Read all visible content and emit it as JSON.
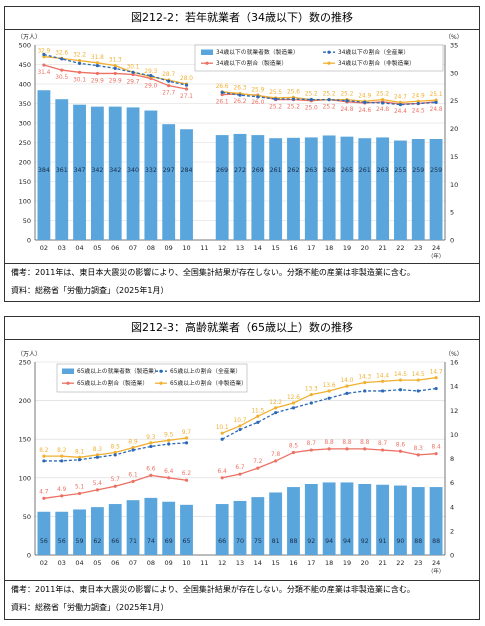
{
  "colors": {
    "bar": "#5aa6dc",
    "total": "#2b68b5",
    "manufacturing": "#ec7063",
    "non_manufacturing": "#f0b030"
  },
  "panels": [
    {
      "title": "図212-2：若年就業者（34歳以下）数の推移",
      "notes": [
        "備考：2011年は、東日本大震災の影響により、全国集計結果が存在しない。分類不能の産業は非製造業に含む。",
        "資料：総務省「労働力調査」（2025年1月）"
      ]
    },
    {
      "title": "図212-3：高齢就業者（65歳以上）数の推移",
      "notes": [
        "備考：2011年は、東日本大震災の影響により、全国集計結果が存在しない。分類不能の産業は非製造業に含む。",
        "資料：総務省「労働力調査」（2025年1月）"
      ]
    }
  ],
  "chart_data": [
    {
      "type": "bar",
      "categories": [
        "02",
        "03",
        "04",
        "05",
        "06",
        "07",
        "08",
        "09",
        "10",
        "11",
        "12",
        "13",
        "14",
        "15",
        "16",
        "17",
        "18",
        "19",
        "20",
        "21",
        "22",
        "23",
        "24"
      ],
      "left_unit": "（万人）",
      "right_unit": "（%）",
      "x_unit": "（年）",
      "ylim": [
        0,
        500
      ],
      "y2lim": [
        0,
        35
      ],
      "left_ticks": [
        "0",
        "50",
        "100",
        "150",
        "200",
        "250",
        "300",
        "350",
        "400",
        "450",
        "500"
      ],
      "right_ticks": [
        "0",
        "5",
        "10",
        "15",
        "20",
        "25",
        "30",
        "35"
      ],
      "legend": [
        "34歳以下の就業者数（製造業）",
        "34歳以下の割合（全産業）",
        "34歳以下の割合（製造業）",
        "34歳以下の割合（非製造業）"
      ],
      "bars": [
        384,
        361,
        347,
        342,
        342,
        340,
        332,
        297,
        284,
        null,
        269,
        272,
        269,
        261,
        262,
        263,
        268,
        265,
        261,
        263,
        255,
        259,
        259
      ],
      "total_ratio": [
        33.3,
        32.5,
        31.7,
        31.3,
        30.8,
        30.1,
        29.5,
        28.5,
        27.8,
        null,
        26.5,
        26.0,
        25.7,
        25.3,
        25.3,
        25.2,
        25.2,
        25.0,
        24.7,
        24.6,
        24.3,
        24.5,
        24.7
      ],
      "manufacturing_ratio": [
        31.4,
        30.5,
        30.1,
        29.9,
        29.9,
        29.7,
        29.0,
        27.7,
        27.1,
        null,
        26.1,
        26.2,
        26.0,
        25.2,
        25.2,
        25.0,
        25.2,
        24.8,
        24.6,
        24.8,
        24.4,
        24.5,
        24.8
      ],
      "non_manufacturing_ratio": [
        32.9,
        32.6,
        32.2,
        31.8,
        31.3,
        30.1,
        29.3,
        28.7,
        28.0,
        null,
        26.6,
        26.3,
        25.9,
        25.5,
        25.6,
        25.2,
        25.2,
        25.2,
        24.9,
        25.2,
        24.7,
        24.9,
        25.1
      ]
    },
    {
      "type": "bar",
      "categories": [
        "02",
        "03",
        "04",
        "05",
        "06",
        "07",
        "08",
        "09",
        "10",
        "11",
        "12",
        "13",
        "14",
        "15",
        "16",
        "17",
        "18",
        "19",
        "20",
        "21",
        "22",
        "23",
        "24"
      ],
      "left_unit": "（万人）",
      "right_unit": "（%）",
      "x_unit": "（年）",
      "ylim": [
        0,
        250
      ],
      "y2lim": [
        0,
        16
      ],
      "left_ticks": [
        "0",
        "50",
        "100",
        "150",
        "200",
        "250"
      ],
      "right_ticks": [
        "0",
        "2",
        "4",
        "6",
        "8",
        "10",
        "12",
        "14",
        "16"
      ],
      "legend": [
        "65歳以上の就業者数（製造業）",
        "65歳以上の割合（全産業）",
        "65歳以上の割合（製造業）",
        "65歳以上の割合（非製造業）"
      ],
      "bars": [
        56,
        56,
        59,
        62,
        66,
        71,
        74,
        69,
        65,
        null,
        66,
        70,
        75,
        81,
        88,
        92,
        94,
        94,
        92,
        91,
        90,
        88,
        88
      ],
      "total_ratio": [
        7.8,
        7.8,
        7.9,
        8.1,
        8.3,
        8.7,
        9.0,
        9.2,
        9.3,
        null,
        9.6,
        10.4,
        11.0,
        11.8,
        12.2,
        12.6,
        13.0,
        13.4,
        13.6,
        13.6,
        13.7,
        13.6,
        13.8
      ],
      "manufacturing_ratio": [
        4.7,
        4.9,
        5.1,
        5.4,
        5.7,
        6.1,
        6.6,
        6.4,
        6.2,
        null,
        6.4,
        6.7,
        7.2,
        7.8,
        8.5,
        8.7,
        8.8,
        8.8,
        8.8,
        8.7,
        8.6,
        8.3,
        8.4
      ],
      "non_manufacturing_ratio": [
        8.2,
        8.2,
        8.1,
        8.3,
        8.5,
        8.9,
        9.3,
        9.5,
        9.7,
        null,
        10.1,
        10.7,
        11.5,
        12.2,
        12.6,
        13.3,
        13.6,
        14.0,
        14.3,
        14.4,
        14.5,
        14.5,
        14.7
      ],
      "labels": {
        "total": [],
        "manufacturing": [
          "4.7",
          "4.9",
          "5.1",
          "5.4",
          "5.7",
          "6.1",
          "6.6",
          "6.4",
          "6.2",
          "",
          "6.4",
          "6.7",
          "7.2",
          "7.8",
          "8.5",
          "8.7",
          "8.8",
          "8.8",
          "8.8",
          "8.7",
          "8.6",
          "8.3",
          "8.4"
        ],
        "non_manufacturing": [
          "8.2",
          "8.2",
          "8.1",
          "8.3",
          "8.5",
          "8.9",
          "9.3",
          "9.5",
          "9.7",
          "",
          "10.1",
          "10.7",
          "11.5",
          "12.2",
          "12.6",
          "13.3",
          "13.6",
          "14.0",
          "14.3",
          "14.4",
          "14.5",
          "14.5",
          "14.7"
        ]
      }
    }
  ]
}
